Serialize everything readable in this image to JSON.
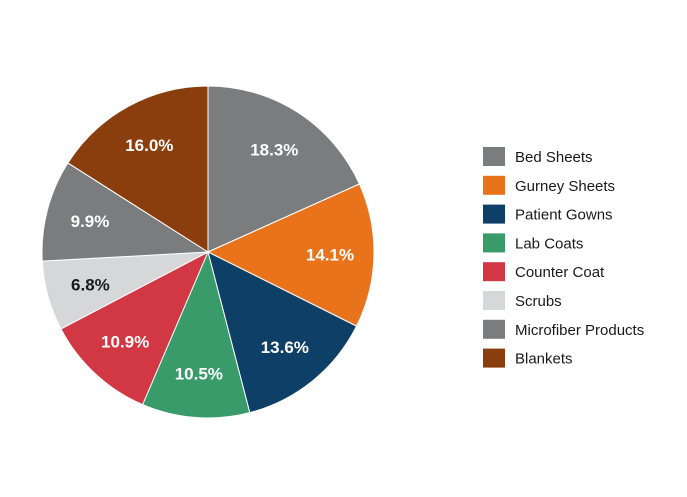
{
  "chart_data": {
    "type": "pie",
    "title": "",
    "legend_position": "right",
    "slices": [
      {
        "name": "Bed Sheets",
        "value": 18.3,
        "label": "18.3%",
        "color": "#7b7c7e",
        "label_color": "#ffffff"
      },
      {
        "name": "Gurney Sheets",
        "value": 14.1,
        "label": "14.1%",
        "color": "#e8731a",
        "label_color": "#ffffff"
      },
      {
        "name": "Patient Gowns",
        "value": 13.6,
        "label": "13.6%",
        "color": "#0e3f66",
        "label_color": "#ffffff"
      },
      {
        "name": "Lab Coats",
        "value": 10.5,
        "label": "10.5%",
        "color": "#389b69",
        "label_color": "#ffffff"
      },
      {
        "name": "Counter Coat",
        "value": 10.9,
        "label": "10.9%",
        "color": "#d23844",
        "label_color": "#ffffff"
      },
      {
        "name": "Scrubs",
        "value": 6.8,
        "label": "6.8%",
        "color": "#d6d7d8",
        "label_color": "#1a1a1a"
      },
      {
        "name": "Microfiber Products",
        "value": 9.9,
        "label": "9.9%",
        "color": "#7b7c7e",
        "label_color": "#ffffff"
      },
      {
        "name": "Blankets",
        "value": 16.0,
        "label": "16.0%",
        "color": "#8a3d0d",
        "label_color": "#ffffff"
      }
    ]
  }
}
